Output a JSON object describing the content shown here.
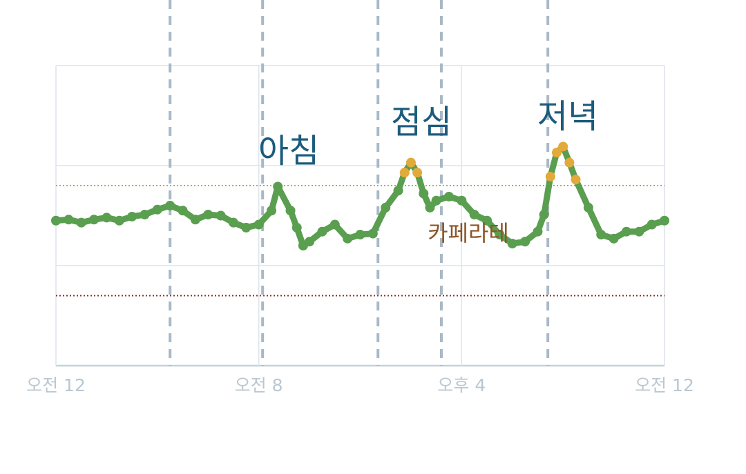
{
  "chart_data": {
    "type": "line",
    "x": [
      0,
      0.5,
      1,
      1.5,
      2,
      2.5,
      3,
      3.5,
      4,
      4.5,
      5,
      5.5,
      6,
      6.5,
      7,
      7.5,
      8,
      8.5,
      8.75,
      9.25,
      9.5,
      9.75,
      10,
      10.5,
      11,
      11.5,
      12,
      12.5,
      13,
      13.5,
      13.75,
      14,
      14.25,
      14.5,
      14.75,
      15,
      15.5,
      16,
      16.5,
      17,
      17.5,
      18,
      18.5,
      19,
      19.25,
      19.5,
      19.75,
      20,
      20.25,
      20.5,
      21,
      21.5,
      22,
      22.5,
      23,
      23.5,
      24
    ],
    "series": [
      {
        "color": "#5a9e4f",
        "high_color": "#e2a93b",
        "values": [
          145,
          146,
          143,
          146,
          148,
          145,
          149,
          151,
          156,
          160,
          155,
          146,
          151,
          150,
          143,
          138,
          141,
          155,
          179,
          155,
          138,
          120,
          124,
          134,
          141,
          127,
          131,
          132,
          158,
          175,
          193,
          203,
          193,
          172,
          158,
          165,
          169,
          165,
          151,
          145,
          131,
          122,
          124,
          134,
          151,
          189,
          213,
          219,
          203,
          186,
          158,
          131,
          127,
          134,
          134,
          141,
          145
        ]
      }
    ],
    "xlim": [
      0,
      24
    ],
    "xticks": [
      {
        "value": 0,
        "label": "오전 12"
      },
      {
        "value": 8,
        "label": "오전 8"
      },
      {
        "value": 16,
        "label": "오후 4"
      },
      {
        "value": 24,
        "label": "오전 12"
      }
    ],
    "ylim": [
      0,
      300
    ],
    "yticks": [
      0,
      100,
      200,
      300
    ],
    "grid": true,
    "reference_lines": [
      {
        "value": 180,
        "color": "#c9a14a"
      },
      {
        "value": 70,
        "color": "#8b2a2a"
      }
    ],
    "event_markers": [
      4.5,
      8.15,
      12.7,
      15.2,
      19.4
    ],
    "annotations": [
      "아침",
      "점심",
      "저녁",
      "카페라테"
    ]
  }
}
